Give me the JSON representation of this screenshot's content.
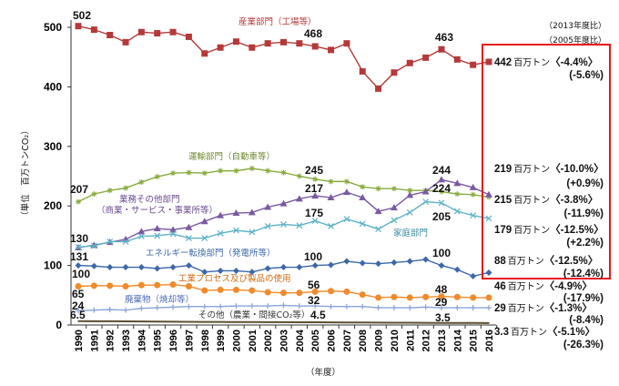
{
  "chart_data": {
    "type": "line",
    "ylabel": "（単位　百万トンCO₂）",
    "xlabel": "（年度）",
    "ylim": [
      0,
      500
    ],
    "yticks": [
      "0",
      "100",
      "200",
      "300",
      "400",
      "500"
    ],
    "grid": false,
    "x": [
      "1990",
      "1991",
      "1992",
      "1993",
      "1994",
      "1995",
      "1996",
      "1997",
      "1998",
      "1999",
      "2000",
      "2001",
      "2002",
      "2003",
      "2004",
      "2005",
      "2006",
      "2007",
      "2008",
      "2009",
      "2010",
      "2011",
      "2012",
      "2013",
      "2014",
      "2015",
      "2016"
    ],
    "series": [
      {
        "name": "産業部門（工場等）",
        "color": "#b5393a",
        "marker": "square",
        "values": [
          502,
          496,
          487,
          475,
          492,
          490,
          492,
          484,
          456,
          466,
          476,
          466,
          473,
          475,
          473,
          468,
          462,
          473,
          426,
          397,
          424,
          440,
          449,
          463,
          446,
          437,
          442
        ]
      },
      {
        "name": "運輸部門（自動車等）",
        "color": "#8aab3e",
        "marker": "asterisk",
        "values": [
          207,
          220,
          226,
          230,
          240,
          249,
          255,
          256,
          255,
          259,
          259,
          263,
          259,
          256,
          250,
          245,
          241,
          241,
          232,
          229,
          229,
          226,
          226,
          224,
          220,
          219,
          215
        ]
      },
      {
        "name": "業務その他部門（商業・サービス・事業所等）",
        "color": "#7a5aa0",
        "marker": "triangle",
        "values": [
          130,
          134,
          139,
          144,
          157,
          162,
          160,
          164,
          174,
          184,
          188,
          189,
          198,
          204,
          212,
          217,
          214,
          223,
          214,
          191,
          197,
          218,
          224,
          244,
          238,
          231,
          219
        ]
      },
      {
        "name": "家庭部門",
        "color": "#5fb3c8",
        "marker": "x",
        "values": [
          131,
          133,
          140,
          140,
          149,
          150,
          153,
          146,
          146,
          154,
          159,
          156,
          166,
          169,
          167,
          175,
          166,
          178,
          170,
          161,
          176,
          189,
          207,
          205,
          191,
          184,
          179
        ]
      },
      {
        "name": "エネルギー転換部門（発電所等）",
        "color": "#3d68a8",
        "marker": "diamond",
        "values": [
          100,
          99,
          97,
          97,
          97,
          95,
          97,
          100,
          89,
          91,
          91,
          89,
          95,
          97,
          97,
          100,
          101,
          107,
          104,
          103,
          105,
          107,
          110,
          100,
          93,
          82,
          88
        ]
      },
      {
        "name": "工業プロセス及び製品の使用",
        "color": "#f08a2c",
        "marker": "circle",
        "values": [
          65,
          66,
          66,
          65,
          67,
          67,
          68,
          65,
          58,
          59,
          59,
          58,
          55,
          54,
          54,
          56,
          57,
          56,
          51,
          46,
          47,
          46,
          47,
          48,
          47,
          46,
          46
        ]
      },
      {
        "name": "廃棄物（焼却等）",
        "color": "#8aa5d8",
        "marker": "plus",
        "values": [
          24,
          25,
          26,
          25,
          28,
          29,
          30,
          31,
          31,
          31,
          32,
          32,
          32,
          33,
          32,
          32,
          31,
          31,
          31,
          29,
          29,
          29,
          30,
          29,
          29,
          29,
          29
        ]
      },
      {
        "name": "その他（農業・間接CO₂等）",
        "color": "#5a5030",
        "marker": "none",
        "values": [
          6.5,
          6.4,
          6.3,
          6.2,
          6.0,
          5.8,
          5.6,
          5.4,
          5.2,
          5.1,
          5.0,
          4.9,
          4.8,
          4.7,
          4.6,
          4.5,
          4.4,
          4.3,
          4.2,
          4.0,
          3.9,
          3.8,
          3.7,
          3.5,
          3.4,
          3.4,
          3.3
        ]
      }
    ],
    "point_labels": {
      "industry_1990": "502",
      "industry_2005": "468",
      "industry_2013": "463",
      "transport_1990": "207",
      "transport_2005": "245",
      "transport_2013": "224",
      "commercial_1990": "130",
      "commercial_2005": "217",
      "commercial_2013": "244",
      "household_1990": "131",
      "household_2005": "175",
      "household_2013": "205",
      "energy_1990": "100",
      "energy_2005": "100",
      "energy_2013": "100",
      "process_1990": "65",
      "process_2005": "56",
      "process_2013": "48",
      "waste_1990": "24",
      "waste_2005": "32",
      "waste_2013": "29",
      "other_1990": "6.5",
      "other_2005": "4.5",
      "other_2013": "3.5"
    },
    "comparison_headers": {
      "vs2013": "（2013年度比）",
      "vs2005": "（2005年度比）"
    },
    "unit": "百万トン",
    "latest": [
      {
        "value": "442",
        "vs2013": "〈-4.4%〉",
        "vs2005": "(-5.6%)"
      },
      {
        "value": "219",
        "vs2013": "〈-10.0%〉",
        "vs2005": "(+0.9%)"
      },
      {
        "value": "215",
        "vs2013": "〈-3.8%〉",
        "vs2005": "(-11.9%)"
      },
      {
        "value": "179",
        "vs2013": "〈-12.5%〉",
        "vs2005": "(+2.2%)"
      },
      {
        "value": "88",
        "vs2013": "〈-12.5%〉",
        "vs2005": "(-12.4%)"
      },
      {
        "value": "46",
        "vs2013": "〈-4.9%〉",
        "vs2005": "(-17.9%)"
      },
      {
        "value": "29",
        "vs2013": "〈-1.3%〉",
        "vs2005": "(-8.4%)"
      },
      {
        "value": "3.3",
        "vs2013": "〈-5.1%〉",
        "vs2005": "(-26.3%)"
      }
    ],
    "highlight_box_color": "#e8141c"
  }
}
